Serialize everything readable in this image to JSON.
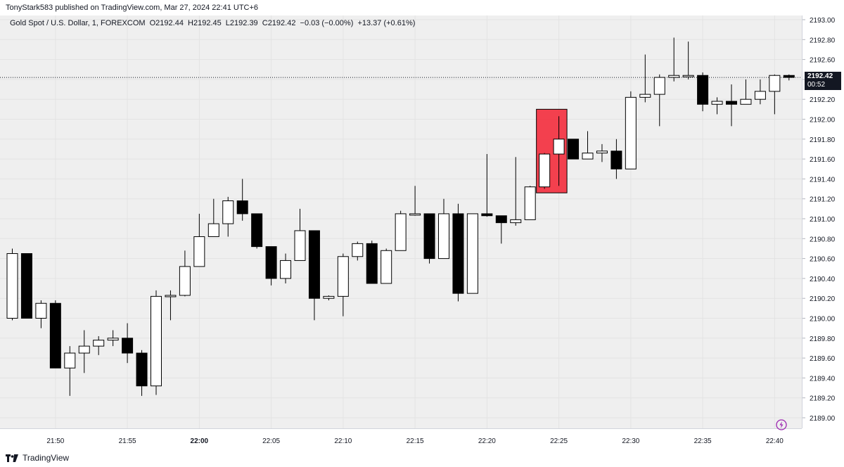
{
  "header": {
    "publisher_text": "TonyStark583 published on TradingView.com, Mar 27, 2024 22:41 UTC+6"
  },
  "legend": {
    "symbol": "Gold Spot / U.S. Dollar, 1, FOREXCOM",
    "open": "O2192.44",
    "high": "H2192.45",
    "low": "L2192.39",
    "close": "C2192.42",
    "change": "−0.03 (−0.00%)",
    "extra": "+13.37 (+0.61%)"
  },
  "price_label": {
    "price": "2192.42",
    "countdown": "00:52"
  },
  "footer": {
    "brand": "TradingView"
  },
  "colors": {
    "background": "#efefef",
    "up_body": "#ffffff",
    "down_body": "#000000",
    "wick": "#000000",
    "highlight": "#f23645"
  },
  "chart_data": {
    "type": "candlestick",
    "timeframe": "1",
    "symbol": "Gold Spot / U.S. Dollar",
    "ylim": [
      2188.8,
      2193.2
    ],
    "y_ticks": [
      2189.0,
      2189.2,
      2189.4,
      2189.6,
      2189.8,
      2190.0,
      2190.2,
      2190.4,
      2190.6,
      2190.8,
      2191.0,
      2191.2,
      2191.4,
      2191.6,
      2191.8,
      2192.0,
      2192.2,
      2192.4,
      2192.6,
      2192.8,
      2193.0
    ],
    "x_ticks": [
      {
        "label": "21:50",
        "index": 3
      },
      {
        "label": "21:55",
        "index": 8
      },
      {
        "label": "22:00",
        "index": 13,
        "bold": true
      },
      {
        "label": "22:05",
        "index": 18
      },
      {
        "label": "22:10",
        "index": 23
      },
      {
        "label": "22:15",
        "index": 28
      },
      {
        "label": "22:20",
        "index": 33
      },
      {
        "label": "22:25",
        "index": 38
      },
      {
        "label": "22:30",
        "index": 43
      },
      {
        "label": "22:35",
        "index": 48
      },
      {
        "label": "22:40",
        "index": 53
      }
    ],
    "candles": [
      {
        "o": 2190.0,
        "h": 2190.7,
        "l": 2189.98,
        "c": 2190.65
      },
      {
        "o": 2190.65,
        "h": 2190.65,
        "l": 2190.0,
        "c": 2190.0
      },
      {
        "o": 2190.0,
        "h": 2190.18,
        "l": 2189.9,
        "c": 2190.15
      },
      {
        "o": 2190.15,
        "h": 2190.18,
        "l": 2189.5,
        "c": 2189.5
      },
      {
        "o": 2189.5,
        "h": 2189.72,
        "l": 2189.22,
        "c": 2189.65
      },
      {
        "o": 2189.65,
        "h": 2189.88,
        "l": 2189.45,
        "c": 2189.72
      },
      {
        "o": 2189.72,
        "h": 2189.82,
        "l": 2189.63,
        "c": 2189.78
      },
      {
        "o": 2189.78,
        "h": 2189.88,
        "l": 2189.72,
        "c": 2189.8
      },
      {
        "o": 2189.8,
        "h": 2189.95,
        "l": 2189.55,
        "c": 2189.65
      },
      {
        "o": 2189.65,
        "h": 2189.68,
        "l": 2189.22,
        "c": 2189.32
      },
      {
        "o": 2189.32,
        "h": 2190.28,
        "l": 2189.23,
        "c": 2190.22
      },
      {
        "o": 2190.22,
        "h": 2190.28,
        "l": 2189.98,
        "c": 2190.23
      },
      {
        "o": 2190.23,
        "h": 2190.68,
        "l": 2190.22,
        "c": 2190.52
      },
      {
        "o": 2190.52,
        "h": 2191.05,
        "l": 2190.52,
        "c": 2190.82
      },
      {
        "o": 2190.82,
        "h": 2191.2,
        "l": 2190.82,
        "c": 2190.95
      },
      {
        "o": 2190.95,
        "h": 2191.22,
        "l": 2190.82,
        "c": 2191.18
      },
      {
        "o": 2191.18,
        "h": 2191.4,
        "l": 2190.98,
        "c": 2191.05
      },
      {
        "o": 2191.05,
        "h": 2191.05,
        "l": 2190.7,
        "c": 2190.72
      },
      {
        "o": 2190.72,
        "h": 2190.72,
        "l": 2190.33,
        "c": 2190.4
      },
      {
        "o": 2190.4,
        "h": 2190.65,
        "l": 2190.35,
        "c": 2190.58
      },
      {
        "o": 2190.58,
        "h": 2191.1,
        "l": 2190.58,
        "c": 2190.88
      },
      {
        "o": 2190.88,
        "h": 2190.88,
        "l": 2189.98,
        "c": 2190.2
      },
      {
        "o": 2190.2,
        "h": 2190.23,
        "l": 2190.18,
        "c": 2190.22
      },
      {
        "o": 2190.22,
        "h": 2190.65,
        "l": 2190.02,
        "c": 2190.62
      },
      {
        "o": 2190.62,
        "h": 2190.77,
        "l": 2190.58,
        "c": 2190.75
      },
      {
        "o": 2190.75,
        "h": 2190.78,
        "l": 2190.35,
        "c": 2190.35
      },
      {
        "o": 2190.35,
        "h": 2190.7,
        "l": 2190.35,
        "c": 2190.68
      },
      {
        "o": 2190.68,
        "h": 2191.08,
        "l": 2190.68,
        "c": 2191.05
      },
      {
        "o": 2191.05,
        "h": 2191.33,
        "l": 2191.03,
        "c": 2191.05
      },
      {
        "o": 2191.05,
        "h": 2191.05,
        "l": 2190.55,
        "c": 2190.6
      },
      {
        "o": 2190.6,
        "h": 2191.2,
        "l": 2190.6,
        "c": 2191.05
      },
      {
        "o": 2191.05,
        "h": 2191.15,
        "l": 2190.17,
        "c": 2190.25
      },
      {
        "o": 2190.25,
        "h": 2191.05,
        "l": 2190.25,
        "c": 2191.05
      },
      {
        "o": 2191.05,
        "h": 2191.65,
        "l": 2191.02,
        "c": 2191.03
      },
      {
        "o": 2191.03,
        "h": 2191.03,
        "l": 2190.75,
        "c": 2190.96
      },
      {
        "o": 2190.96,
        "h": 2191.62,
        "l": 2190.93,
        "c": 2190.99
      },
      {
        "o": 2190.99,
        "h": 2191.33,
        "l": 2190.99,
        "c": 2191.32
      },
      {
        "o": 2191.32,
        "h": 2191.66,
        "l": 2191.3,
        "c": 2191.65
      },
      {
        "o": 2191.65,
        "h": 2192.03,
        "l": 2191.33,
        "c": 2191.8
      },
      {
        "o": 2191.8,
        "h": 2191.8,
        "l": 2191.6,
        "c": 2191.6
      },
      {
        "o": 2191.6,
        "h": 2191.88,
        "l": 2191.6,
        "c": 2191.66
      },
      {
        "o": 2191.66,
        "h": 2191.75,
        "l": 2191.57,
        "c": 2191.68
      },
      {
        "o": 2191.68,
        "h": 2191.8,
        "l": 2191.4,
        "c": 2191.5
      },
      {
        "o": 2191.5,
        "h": 2192.28,
        "l": 2191.5,
        "c": 2192.22
      },
      {
        "o": 2192.22,
        "h": 2192.65,
        "l": 2192.17,
        "c": 2192.25
      },
      {
        "o": 2192.25,
        "h": 2192.45,
        "l": 2191.93,
        "c": 2192.42
      },
      {
        "o": 2192.42,
        "h": 2192.82,
        "l": 2192.38,
        "c": 2192.44
      },
      {
        "o": 2192.44,
        "h": 2192.78,
        "l": 2192.4,
        "c": 2192.44
      },
      {
        "o": 2192.44,
        "h": 2192.47,
        "l": 2192.08,
        "c": 2192.15
      },
      {
        "o": 2192.15,
        "h": 2192.22,
        "l": 2192.05,
        "c": 2192.18
      },
      {
        "o": 2192.18,
        "h": 2192.35,
        "l": 2191.93,
        "c": 2192.15
      },
      {
        "o": 2192.15,
        "h": 2192.4,
        "l": 2192.15,
        "c": 2192.2
      },
      {
        "o": 2192.2,
        "h": 2192.4,
        "l": 2192.15,
        "c": 2192.28
      },
      {
        "o": 2192.28,
        "h": 2192.45,
        "l": 2192.05,
        "c": 2192.44
      },
      {
        "o": 2192.44,
        "h": 2192.45,
        "l": 2192.39,
        "c": 2192.42
      }
    ],
    "highlight_box": {
      "start_index": 37,
      "end_index": 38,
      "y_low": 2191.26,
      "y_high": 2192.1
    },
    "last_price": 2192.42
  }
}
